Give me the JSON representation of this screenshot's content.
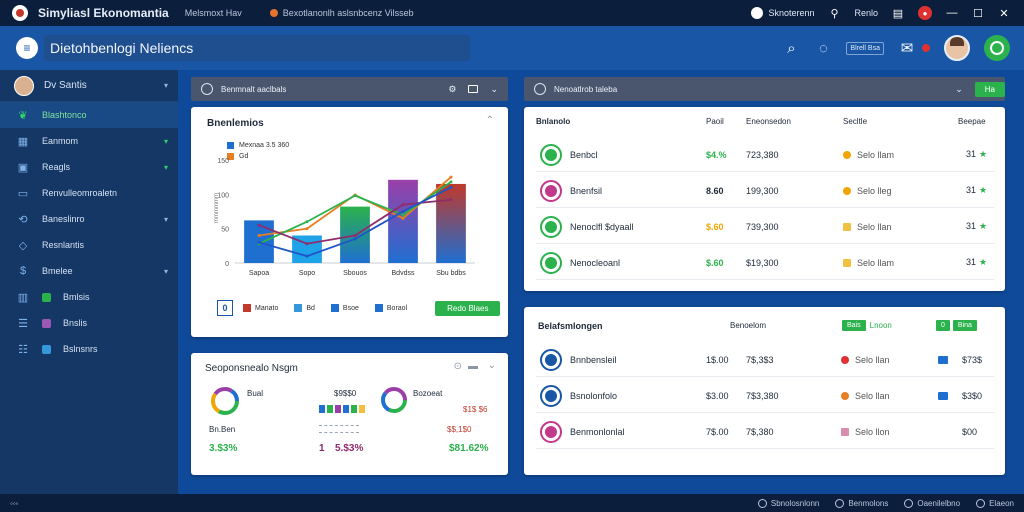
{
  "titlebar": {
    "title": "Simyliasl Ekonomantia",
    "menu1": "Melsmoxt   Hav",
    "menu2": "Bexotlanonlh aslsnbcenz Vilsseb",
    "account": "Sknoterenn",
    "profile": "Renlo"
  },
  "header": {
    "search_value": "Dietohbenlogi Neliencs",
    "badge": "Blrell Bsa"
  },
  "sidebar": {
    "user": "Dv Santis",
    "items": [
      {
        "label": "Blashtonco",
        "icon": "leaf-icon",
        "active": true
      },
      {
        "label": "Eanmom",
        "icon": "grid-icon",
        "chev": "green"
      },
      {
        "label": "Reagls",
        "icon": "box-icon",
        "chev": "green"
      },
      {
        "label": "Renvulleomroaletn",
        "icon": "monitor-icon"
      },
      {
        "label": "Baneslinro",
        "icon": "sync-icon",
        "chev": "normal"
      },
      {
        "label": "Resnlantis",
        "icon": "tag-icon"
      },
      {
        "label": "Bmelee",
        "icon": "dollar-icon",
        "chev": "normal"
      },
      {
        "label": "Bmlsis",
        "icon": "chart-icon",
        "swatch": "#2bb24c"
      },
      {
        "label": "Bnslis",
        "icon": "sliders-icon",
        "swatch": "#9b59b6"
      },
      {
        "label": "Bslnsnrs",
        "icon": "list-icon",
        "swatch": "#3498db"
      }
    ]
  },
  "chart_panel": {
    "header": "Benmnalt aaclbals",
    "title": "Bnenlemios",
    "legend": [
      {
        "label": "Mexnaa 3.5 360",
        "color": "#1f6fd1"
      },
      {
        "label": "Gd",
        "color": "#e67e22"
      }
    ],
    "foot": {
      "box": "0",
      "items": [
        {
          "label": "Manato",
          "color": "#c0392b"
        },
        {
          "label": "Bd",
          "color": "#3498db"
        },
        {
          "label": "Bsoe",
          "color": "#1f6fd1"
        },
        {
          "label": "Boraol",
          "color": "#1f6fd1"
        }
      ],
      "button": "Redo Blaes"
    }
  },
  "chart_data": {
    "type": "bar",
    "categories": [
      "Sapoa",
      "Sopo",
      "Sbouos",
      "Bdvdss",
      "Sbu bdbs"
    ],
    "ylim": [
      0,
      160
    ],
    "yticks": [
      "0",
      "50",
      "100",
      "150"
    ],
    "ylabel": "mmmmmm",
    "bar_values": [
      62,
      40,
      82,
      121,
      115
    ],
    "bar_colors": [
      [
        "#1f6fd1",
        "#1f6fd1"
      ],
      [
        "#1fa3e8",
        "#1fa3e8"
      ],
      [
        "#1f6fd1",
        "#2bb24c"
      ],
      [
        "#1f6fd1",
        "#9b3fa8"
      ],
      [
        "#1f6fd1",
        "#c0392b"
      ]
    ],
    "series": [
      {
        "color": "#e67e22",
        "values": [
          40,
          50,
          99,
          65,
          125
        ]
      },
      {
        "color": "#2bb24c",
        "values": [
          28,
          60,
          98,
          70,
          118
        ]
      },
      {
        "color": "#8e2d6b",
        "values": [
          55,
          28,
          40,
          85,
          92
        ]
      },
      {
        "color": "#1f55c8",
        "values": [
          30,
          10,
          35,
          75,
          110
        ]
      }
    ]
  },
  "summary_panel": {
    "title": "Seoponsnealo Nsgm",
    "left": {
      "name": "Bual",
      "v1": "$9$$0",
      "sub": "Bn.Ben",
      "total": "3.$3%"
    },
    "mid": {
      "count": "1",
      "value": "5.$3%"
    },
    "right": {
      "name": "Bozoeat",
      "v1": "$1$ $6",
      "v2": "$$,1$0",
      "total": "$81.62%"
    }
  },
  "top_table": {
    "header": "Nenoatlrob taleba",
    "button": "Ha",
    "columns": [
      "Bnlanolo",
      "Paoil",
      "Eneonsedon",
      "Secltle",
      "Beepae"
    ],
    "rows": [
      {
        "name": "Benbcl",
        "v1": "$4.%",
        "v2": "723,380",
        "status": "Selo llam",
        "rank": "31",
        "color": "#2bb24c",
        "status_color": "#f0a500"
      },
      {
        "name": "Bnenfsil",
        "v1": "8.60",
        "v2": "199,300",
        "status": "Selo lleg",
        "rank": "31",
        "color": "#c0398b",
        "status_color": "#f0a500"
      },
      {
        "name": "Nenoclfl $dyaall",
        "v1": "$.60",
        "v2": "739,300",
        "status": "Selo llan",
        "rank": "31",
        "color": "#2bb24c",
        "status_color": "#f0c040"
      },
      {
        "name": "Nenocleoanl",
        "v1": "$.60",
        "v2": "$19,300",
        "status": "Selo llam",
        "rank": "31",
        "color": "#2bb24c",
        "status_color": "#f0c040"
      }
    ]
  },
  "bottom_table": {
    "title": "Belafsmlongen",
    "col": "Benoelom",
    "tag1": "Bais",
    "tag1_text": "Lnoon",
    "tag2": "0",
    "tag2_text": "Bina",
    "rows": [
      {
        "name": "Bnnbensleil",
        "v1": "1$.00",
        "v2": "7$,3$3",
        "status": "Selo llan",
        "right": "$73$",
        "color": "#1957a6",
        "status_color": "#e03131",
        "sq_color": "#1f6fd1"
      },
      {
        "name": "Bsnolonfolo",
        "v1": "$3.00",
        "v2": "7$3,380",
        "status": "Selo llan",
        "right": "$3$0",
        "color": "#1957a6",
        "status_color": "#e67e22",
        "sq_color": "#1f6fd1"
      },
      {
        "name": "Benmonlonlal",
        "v1": "7$.00",
        "v2": "7$,380",
        "status": "Selo llon",
        "right": "$00",
        "color": "#c0398b",
        "status_color": "#d98cb0",
        "sq_color": ""
      }
    ]
  },
  "statusbar": {
    "items": [
      "Sbnolosnlonn",
      "Benmolons",
      "Oaenilelbno",
      "Elaeon"
    ]
  }
}
